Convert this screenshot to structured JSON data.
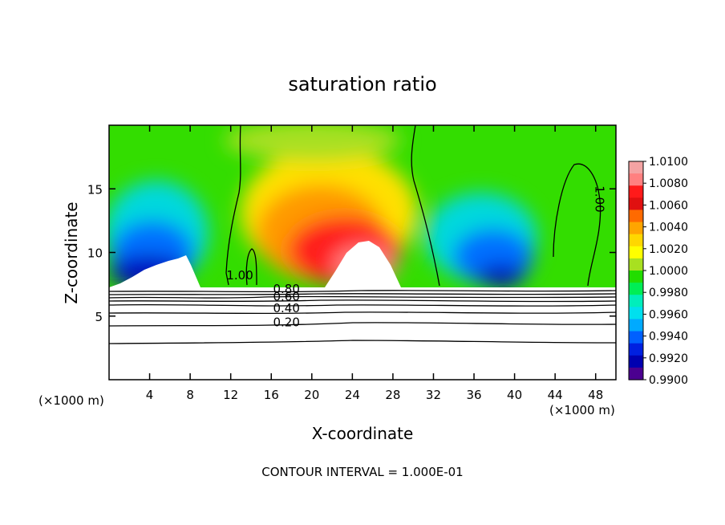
{
  "chart_data": {
    "type": "heatmap",
    "title": "saturation ratio",
    "xlabel": "X-coordinate",
    "ylabel": "Z-coordinate",
    "x_unit_left": "(×1000 m)",
    "x_unit_right": "(×1000 m)",
    "xlim": [
      0,
      50
    ],
    "ylim": [
      0,
      20
    ],
    "x_ticks": [
      4,
      8,
      12,
      16,
      20,
      24,
      28,
      32,
      36,
      40,
      44,
      48
    ],
    "y_ticks": [
      5,
      10,
      15
    ],
    "footnote": "CONTOUR INTERVAL = 1.000E-01",
    "colorbar": {
      "levels": [
        "1.0100",
        "1.0080",
        "1.0060",
        "1.0040",
        "1.0020",
        "1.0000",
        "0.9980",
        "0.9960",
        "0.9940",
        "0.9920",
        "0.9900"
      ],
      "colors": [
        "#f4a3a3",
        "#ff8080",
        "#ff1a1a",
        "#e01010",
        "#ff6a00",
        "#ffa500",
        "#ffd700",
        "#ffff00",
        "#a8e020",
        "#22dd00",
        "#00ee55",
        "#00eebb",
        "#00e0ee",
        "#00aaff",
        "#0060ff",
        "#0020e0",
        "#0000b0",
        "#4b0090"
      ]
    },
    "contour_labels": [
      {
        "text": "1.00",
        "x": 12.9,
        "z": 7.9
      },
      {
        "text": "0.80",
        "x": 17.5,
        "z": 6.8
      },
      {
        "text": "0.60",
        "x": 17.5,
        "z": 6.2
      },
      {
        "text": "0.40",
        "x": 17.5,
        "z": 5.3
      },
      {
        "text": "0.20",
        "x": 17.5,
        "z": 4.2
      },
      {
        "text": "1.00",
        "x": 48.0,
        "z": 14.2
      }
    ],
    "ground_top_z": 7.3,
    "below_ground_contours_z": [
      7.1,
      6.8,
      6.5,
      6.3,
      6.0,
      5.5,
      4.5,
      3.0
    ]
  }
}
